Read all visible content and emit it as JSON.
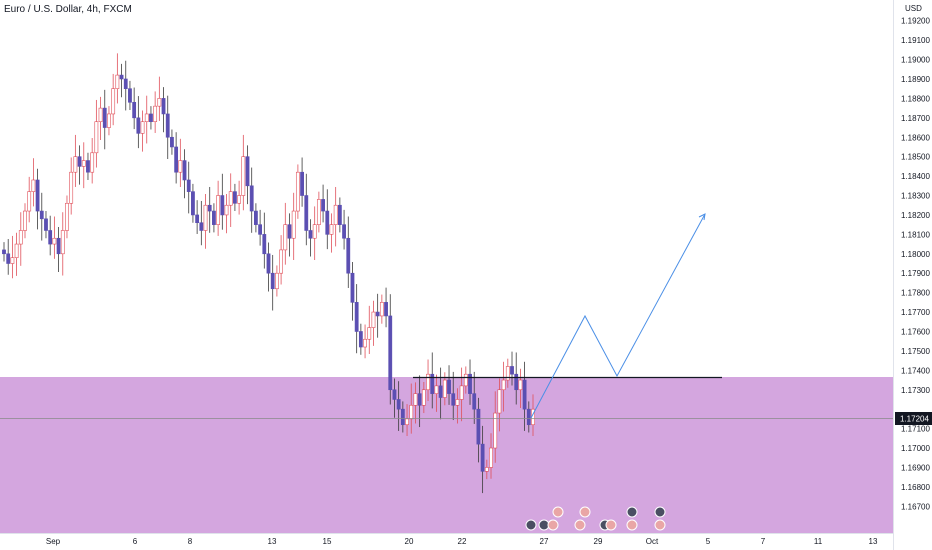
{
  "header": {
    "title": "Euro / U.S. Dollar, 4h, FXCM",
    "currency": "USD"
  },
  "price_axis": {
    "ticks": [
      "1.19200",
      "1.19100",
      "1.19000",
      "1.18900",
      "1.18800",
      "1.18700",
      "1.18600",
      "1.18500",
      "1.18400",
      "1.18300",
      "1.18200",
      "1.18100",
      "1.18000",
      "1.17900",
      "1.17800",
      "1.17700",
      "1.17600",
      "1.17500",
      "1.17400",
      "1.17300",
      "1.17100",
      "1.17000",
      "1.16900",
      "1.16800",
      "1.16700"
    ],
    "current_price_label": "1.17204"
  },
  "time_axis": {
    "labels": [
      "Sep",
      "6",
      "8",
      "13",
      "15",
      "20",
      "22",
      "27",
      "29",
      "Oct",
      "5",
      "7",
      "11",
      "13"
    ]
  },
  "colors": {
    "up_candle": "#ffffff",
    "up_border": "#e0505a",
    "down_candle": "#5b4fb2",
    "zone_fill": "#d4a6df",
    "projection_line": "#4b8fe6",
    "resistance_line": "#131722",
    "current_price_line": "#8a8a8a"
  },
  "chart_data": {
    "type": "candlestick",
    "title": "Euro / U.S. Dollar, 4h, FXCM",
    "ylabel": "USD",
    "ylim": [
      1.1664,
      1.193
    ],
    "grid": false,
    "x_ticks": [
      "Sep",
      "6",
      "8",
      "13",
      "15",
      "20",
      "22",
      "27",
      "29",
      "Oct",
      "5",
      "7",
      "11",
      "13"
    ],
    "current_price": 1.17204,
    "demand_zone": [
      1.1658,
      1.17415
    ],
    "resistance_level": 1.17415,
    "closes": [
      1.18,
      1.1795,
      1.1798,
      1.1805,
      1.1812,
      1.1822,
      1.1832,
      1.1838,
      1.1822,
      1.1818,
      1.1812,
      1.1805,
      1.1808,
      1.18,
      1.1812,
      1.1826,
      1.1842,
      1.185,
      1.1845,
      1.1848,
      1.1842,
      1.1852,
      1.1868,
      1.1875,
      1.1865,
      1.1872,
      1.1885,
      1.1892,
      1.189,
      1.1885,
      1.1878,
      1.187,
      1.1862,
      1.1868,
      1.1872,
      1.1868,
      1.1876,
      1.188,
      1.1872,
      1.186,
      1.1855,
      1.1842,
      1.1848,
      1.1838,
      1.1832,
      1.182,
      1.1816,
      1.1812,
      1.1825,
      1.1822,
      1.1815,
      1.183,
      1.182,
      1.1825,
      1.1832,
      1.1826,
      1.183,
      1.185,
      1.1835,
      1.1822,
      1.1815,
      1.181,
      1.18,
      1.179,
      1.1782,
      1.179,
      1.1802,
      1.1815,
      1.1808,
      1.1822,
      1.1842,
      1.183,
      1.1812,
      1.1808,
      1.1815,
      1.1828,
      1.1822,
      1.181,
      1.1815,
      1.1825,
      1.1815,
      1.1808,
      1.179,
      1.1775,
      1.176,
      1.1752,
      1.1756,
      1.1762,
      1.177,
      1.1768,
      1.1775,
      1.1768,
      1.173,
      1.1725,
      1.172,
      1.1712,
      1.1715,
      1.1722,
      1.1728,
      1.1722,
      1.173,
      1.1738,
      1.1728,
      1.1732,
      1.1726,
      1.1735,
      1.1728,
      1.1722,
      1.1725,
      1.1732,
      1.1738,
      1.1728,
      1.172,
      1.1702,
      1.1688,
      1.169,
      1.17,
      1.1718,
      1.173,
      1.1735,
      1.1742,
      1.1738,
      1.173,
      1.1735,
      1.172,
      1.1712,
      1.172
    ]
  }
}
